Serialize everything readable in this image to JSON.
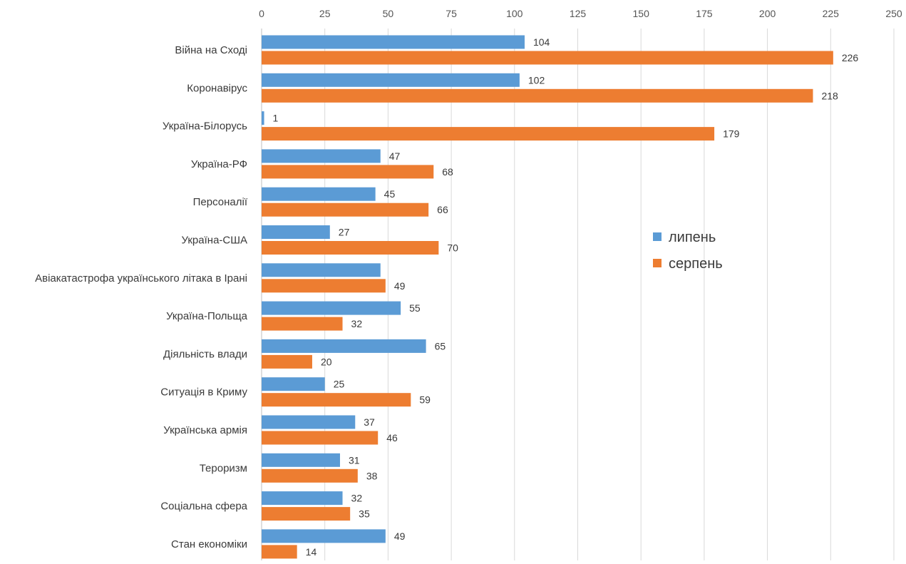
{
  "chart_data": {
    "type": "bar",
    "orientation": "horizontal",
    "categories": [
      "Війна на Сході",
      "Коронавірус",
      "Україна-Білорусь",
      "Україна-РФ",
      "Персоналії",
      "Україна-США",
      "Авіакатастрофа українського літака в Ірані",
      "Україна-Польща",
      "Діяльність влади",
      "Ситуація в Криму",
      "Українська армія",
      "Тероризм",
      "Соціальна сфера",
      "Стан економіки"
    ],
    "series": [
      {
        "name": "липень",
        "color": "#5B9BD5",
        "values": [
          104,
          102,
          1,
          47,
          45,
          27,
          47,
          55,
          65,
          25,
          37,
          31,
          32,
          49
        ],
        "labels": [
          "104",
          "102",
          "1",
          "47",
          "45",
          "27",
          "",
          "55",
          "65",
          "25",
          "37",
          "31",
          "32",
          "49"
        ]
      },
      {
        "name": "серпень",
        "color": "#ED7D31",
        "values": [
          226,
          218,
          179,
          68,
          66,
          70,
          49,
          32,
          20,
          59,
          46,
          38,
          35,
          14
        ],
        "labels": [
          "226",
          "218",
          "179",
          "68",
          "66",
          "70",
          "49",
          "32",
          "20",
          "59",
          "46",
          "38",
          "35",
          "14"
        ]
      }
    ],
    "xlim": [
      0,
      250
    ],
    "xticks": [
      "0",
      "25",
      "50",
      "75",
      "100",
      "125",
      "150",
      "175",
      "200",
      "225",
      "250"
    ],
    "xaxis_position": "top",
    "grid": true,
    "legend_position": "right",
    "title": "",
    "xlabel": "",
    "ylabel": ""
  }
}
